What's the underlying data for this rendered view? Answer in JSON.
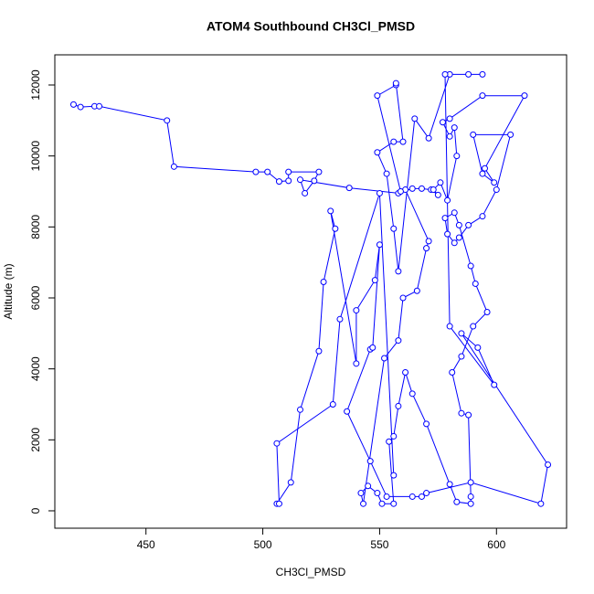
{
  "chart_data": {
    "type": "line",
    "title": "ATOM4 Southbound CH3Cl_PMSD",
    "x_label": "CH3Cl_PMSD",
    "y_label": "Altitude (m)",
    "color": "#0000ff",
    "x": [
      419,
      422,
      428,
      430,
      459,
      462,
      497,
      502,
      507,
      511,
      511,
      524,
      522,
      518,
      516,
      537,
      558,
      564,
      568,
      572,
      575,
      573,
      576,
      579,
      583,
      582,
      580,
      577,
      580,
      594,
      612,
      595,
      599,
      594,
      590,
      606,
      600,
      594,
      588,
      584,
      582,
      579,
      578,
      582,
      584,
      589,
      591,
      596,
      590,
      585,
      581,
      585,
      588,
      589,
      589,
      583,
      580,
      570,
      564,
      561,
      558,
      556,
      554,
      556,
      551,
      549,
      545,
      542,
      543,
      552,
      558,
      560,
      566,
      570,
      571,
      561,
      559,
      549,
      557,
      557,
      560,
      556,
      549,
      553,
      556,
      558,
      565,
      571,
      580,
      588,
      594,
      578,
      580,
      599,
      592,
      585,
      622,
      619,
      589,
      570,
      568,
      564,
      553,
      546,
      536,
      546,
      547,
      550,
      548,
      540,
      540,
      529,
      531,
      526,
      524,
      516,
      512,
      506,
      507,
      506,
      530,
      533,
      550,
      556
    ],
    "values": [
      11450,
      11380,
      11400,
      11400,
      11000,
      9700,
      9550,
      9550,
      9280,
      9300,
      9550,
      9550,
      9300,
      8950,
      9330,
      9100,
      8950,
      9080,
      9080,
      9050,
      8900,
      9050,
      9250,
      8750,
      10000,
      10800,
      10550,
      10950,
      11050,
      11700,
      11700,
      9650,
      9250,
      9500,
      10600,
      10600,
      9050,
      8300,
      8050,
      7700,
      7550,
      7800,
      8250,
      8400,
      8050,
      6900,
      6400,
      5600,
      5200,
      4350,
      3900,
      2750,
      2700,
      400,
      200,
      250,
      750,
      2450,
      3300,
      3900,
      2950,
      2100,
      1950,
      200,
      200,
      500,
      700,
      500,
      200,
      4300,
      4800,
      6000,
      6200,
      7400,
      7600,
      9050,
      9000,
      11700,
      12000,
      12050,
      10400,
      10400,
      10100,
      9500,
      7950,
      6750,
      11050,
      10500,
      12300,
      12300,
      12300,
      12300,
      5200,
      3550,
      4600,
      5000,
      1300,
      200,
      800,
      500,
      400,
      400,
      400,
      1400,
      2800,
      4550,
      4600,
      7500,
      6500,
      5650,
      4150,
      8450,
      7950,
      6450,
      4500,
      2850,
      800,
      200,
      200,
      1900,
      3000,
      5400,
      8950,
      1000
    ],
    "xlim": [
      411,
      630
    ],
    "ylim": [
      -490,
      12850
    ],
    "xticks": [
      450,
      500,
      550,
      600
    ],
    "yticks": [
      0,
      2000,
      4000,
      6000,
      8000,
      10000,
      12000
    ]
  }
}
